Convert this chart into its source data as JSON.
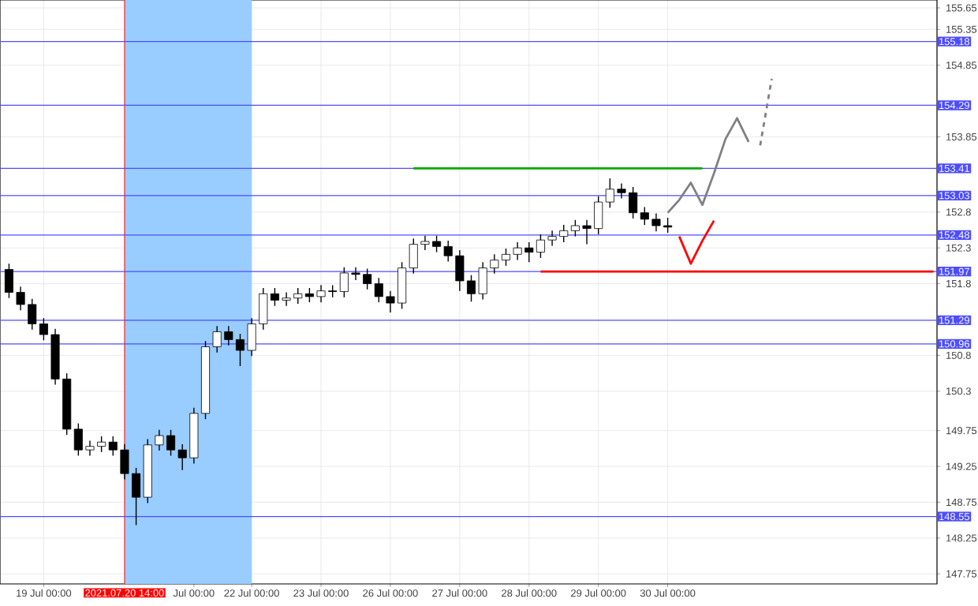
{
  "chart_data": {
    "type": "candlestick",
    "color": "#000000",
    "grid": true,
    "categories": [
      null,
      null,
      null,
      "19 Jul 00:00",
      null,
      null,
      null,
      null,
      null,
      null,
      "2021.07.20 14:00",
      null,
      null,
      null,
      null,
      null,
      "Jul 00:00",
      null,
      null,
      null,
      null,
      "22 Jul 00:00",
      null,
      null,
      null,
      null,
      null,
      "23 Jul 00:00",
      null,
      null,
      null,
      null,
      null,
      "26 Jul 00:00",
      null,
      null,
      null,
      null,
      null,
      "27 Jul 00:00",
      null,
      null,
      null,
      null,
      null,
      "28 Jul 00:00",
      null,
      null,
      null,
      null,
      null,
      "29 Jul 00:00",
      null,
      null,
      null,
      null,
      null,
      "30 Jul 00:00",
      null,
      null,
      null,
      null,
      null,
      null,
      null,
      null,
      null,
      null,
      null,
      null,
      null,
      null,
      null,
      null,
      null,
      null,
      null,
      null,
      null,
      null,
      null
    ],
    "ohlc": [
      [
        152.0,
        152.08,
        151.6,
        151.68
      ],
      [
        151.68,
        151.76,
        151.43,
        151.51
      ],
      [
        151.51,
        151.59,
        151.16,
        151.24
      ],
      [
        151.24,
        151.32,
        151.01,
        151.09
      ],
      [
        151.09,
        151.17,
        150.39,
        150.47
      ],
      [
        150.47,
        150.55,
        149.69,
        149.77
      ],
      [
        149.77,
        149.85,
        149.4,
        149.48
      ],
      [
        149.48,
        149.61,
        149.4,
        149.53
      ],
      [
        149.53,
        149.67,
        149.45,
        149.59
      ],
      [
        149.59,
        149.67,
        149.4,
        149.48
      ],
      [
        149.48,
        149.56,
        149.07,
        149.15
      ],
      [
        149.15,
        149.23,
        148.43,
        148.82
      ],
      [
        148.82,
        149.63,
        148.74,
        149.55
      ],
      [
        149.55,
        149.76,
        149.47,
        149.68
      ],
      [
        149.68,
        149.76,
        149.4,
        149.48
      ],
      [
        149.48,
        149.56,
        149.2,
        149.37
      ],
      [
        149.37,
        150.07,
        149.29,
        149.99
      ],
      [
        149.99,
        151.0,
        149.91,
        150.92
      ],
      [
        150.92,
        151.21,
        150.84,
        151.13
      ],
      [
        151.13,
        151.21,
        150.94,
        151.02
      ],
      [
        151.02,
        151.1,
        150.65,
        150.87
      ],
      [
        150.87,
        151.32,
        150.79,
        151.24
      ],
      [
        151.24,
        151.74,
        151.16,
        151.66
      ],
      [
        151.66,
        151.74,
        151.49,
        151.57
      ],
      [
        151.57,
        151.68,
        151.49,
        151.6
      ],
      [
        151.6,
        151.74,
        151.52,
        151.66
      ],
      [
        151.66,
        151.74,
        151.54,
        151.62
      ],
      [
        151.62,
        151.78,
        151.54,
        151.7
      ],
      [
        151.7,
        151.78,
        151.61,
        151.69
      ],
      [
        151.69,
        152.03,
        151.61,
        151.95
      ],
      [
        151.95,
        152.03,
        151.85,
        151.93
      ],
      [
        151.93,
        152.01,
        151.72,
        151.8
      ],
      [
        151.8,
        151.88,
        151.54,
        151.62
      ],
      [
        151.62,
        151.7,
        151.4,
        151.53
      ],
      [
        151.53,
        152.1,
        151.45,
        152.02
      ],
      [
        152.02,
        152.43,
        151.94,
        152.35
      ],
      [
        152.35,
        152.47,
        152.27,
        152.39
      ],
      [
        152.39,
        152.47,
        152.24,
        152.32
      ],
      [
        152.32,
        152.4,
        152.11,
        152.19
      ],
      [
        152.19,
        152.27,
        151.7,
        151.84
      ],
      [
        151.84,
        151.92,
        151.55,
        151.66
      ],
      [
        151.66,
        152.1,
        151.58,
        152.02
      ],
      [
        152.02,
        152.21,
        151.94,
        152.13
      ],
      [
        152.13,
        152.29,
        152.05,
        152.21
      ],
      [
        152.21,
        152.38,
        152.13,
        152.3
      ],
      [
        152.3,
        152.38,
        152.1,
        152.24
      ],
      [
        152.24,
        152.49,
        152.16,
        152.41
      ],
      [
        152.41,
        152.54,
        152.33,
        152.46
      ],
      [
        152.46,
        152.62,
        152.38,
        152.54
      ],
      [
        152.54,
        152.69,
        152.46,
        152.61
      ],
      [
        152.61,
        152.69,
        152.35,
        152.57
      ],
      [
        152.57,
        153.02,
        152.49,
        152.94
      ],
      [
        152.94,
        153.27,
        152.86,
        153.12
      ],
      [
        153.12,
        153.2,
        152.99,
        153.07
      ],
      [
        153.07,
        153.15,
        152.71,
        152.79
      ],
      [
        152.79,
        152.87,
        152.62,
        152.7
      ],
      [
        152.7,
        152.78,
        152.53,
        152.61
      ],
      [
        152.61,
        152.72,
        152.51,
        152.59
      ],
      null,
      null,
      null,
      null,
      null,
      null,
      null,
      null,
      null,
      null,
      null,
      null,
      null,
      null,
      null,
      null,
      null,
      null,
      null,
      null,
      null,
      null,
      null
    ],
    "series": [
      {
        "type": "line",
        "color": "#00aa00",
        "values": [
          null,
          null,
          null,
          null,
          null,
          null,
          null,
          null,
          null,
          null,
          null,
          null,
          null,
          null,
          null,
          null,
          null,
          null,
          null,
          null,
          null,
          null,
          null,
          null,
          null,
          null,
          null,
          null,
          null,
          null,
          null,
          null,
          null,
          null,
          null,
          153.41,
          153.41,
          153.41,
          153.41,
          153.41,
          153.41,
          153.41,
          153.41,
          153.41,
          153.41,
          153.41,
          153.41,
          153.41,
          153.41,
          153.41,
          153.41,
          153.41,
          153.41,
          153.41,
          153.41,
          153.41,
          153.41,
          153.41,
          153.41,
          153.41,
          153.41,
          null,
          null,
          null,
          null,
          null,
          null,
          null,
          null,
          null,
          null,
          null,
          null,
          null,
          null,
          null,
          null,
          null,
          null,
          null,
          null
        ]
      },
      {
        "type": "line",
        "color": "#ff0000",
        "values": [
          null,
          null,
          null,
          null,
          null,
          null,
          null,
          null,
          null,
          null,
          null,
          null,
          null,
          null,
          null,
          null,
          null,
          null,
          null,
          null,
          null,
          null,
          null,
          null,
          null,
          null,
          null,
          null,
          null,
          null,
          null,
          null,
          null,
          null,
          null,
          null,
          null,
          null,
          null,
          null,
          null,
          null,
          null,
          null,
          null,
          null,
          151.97,
          151.97,
          151.97,
          151.97,
          151.97,
          151.97,
          151.97,
          151.97,
          151.97,
          151.97,
          151.97,
          151.97,
          151.97,
          151.97,
          151.97,
          151.97,
          151.97,
          151.97,
          151.97,
          151.97,
          151.97,
          151.97,
          151.97,
          151.97,
          151.97,
          151.97,
          151.97,
          151.97,
          151.97,
          151.97,
          151.97,
          151.97,
          151.97,
          151.97,
          151.97
        ]
      },
      {
        "type": "line",
        "color": "#808080",
        "values": [
          null,
          null,
          null,
          null,
          null,
          null,
          null,
          null,
          null,
          null,
          null,
          null,
          null,
          null,
          null,
          null,
          null,
          null,
          null,
          null,
          null,
          null,
          null,
          null,
          null,
          null,
          null,
          null,
          null,
          null,
          null,
          null,
          null,
          null,
          null,
          null,
          null,
          null,
          null,
          null,
          null,
          null,
          null,
          null,
          null,
          null,
          null,
          null,
          null,
          null,
          null,
          null,
          null,
          null,
          null,
          null,
          null,
          152.79,
          152.97,
          153.21,
          152.9,
          153.34,
          153.82,
          154.11,
          153.78,
          null,
          null,
          null,
          null,
          null,
          null,
          null,
          null,
          null,
          null,
          null,
          null,
          null,
          null,
          null,
          null
        ]
      },
      {
        "type": "line",
        "color": "#808080",
        "line_style": "dashed",
        "values": [
          null,
          null,
          null,
          null,
          null,
          null,
          null,
          null,
          null,
          null,
          null,
          null,
          null,
          null,
          null,
          null,
          null,
          null,
          null,
          null,
          null,
          null,
          null,
          null,
          null,
          null,
          null,
          null,
          null,
          null,
          null,
          null,
          null,
          null,
          null,
          null,
          null,
          null,
          null,
          null,
          null,
          null,
          null,
          null,
          null,
          null,
          null,
          null,
          null,
          null,
          null,
          null,
          null,
          null,
          null,
          null,
          null,
          null,
          null,
          null,
          null,
          null,
          null,
          null,
          null,
          153.73,
          154.66,
          null,
          null,
          null,
          null,
          null,
          null,
          null,
          null,
          null,
          null,
          null,
          null,
          null,
          null
        ]
      },
      {
        "type": "line",
        "color": "#ff0000",
        "values": [
          null,
          null,
          null,
          null,
          null,
          null,
          null,
          null,
          null,
          null,
          null,
          null,
          null,
          null,
          null,
          null,
          null,
          null,
          null,
          null,
          null,
          null,
          null,
          null,
          null,
          null,
          null,
          null,
          null,
          null,
          null,
          null,
          null,
          null,
          null,
          null,
          null,
          null,
          null,
          null,
          null,
          null,
          null,
          null,
          null,
          null,
          null,
          null,
          null,
          null,
          null,
          null,
          null,
          null,
          null,
          null,
          null,
          null,
          152.46,
          152.08,
          152.4,
          152.68,
          null,
          null,
          null,
          null,
          null,
          null,
          null,
          null,
          null,
          null,
          null,
          null,
          null,
          null,
          null,
          null,
          null,
          null,
          null
        ]
      }
    ],
    "ylim": [
      147.61,
      155.76
    ],
    "yticks": [
      155.65,
      155.35,
      154.85,
      153.85,
      152.8,
      152.3,
      151.8,
      150.8,
      150.3,
      149.75,
      149.25,
      148.75,
      148.25,
      147.75
    ],
    "ref_lines": [
      {
        "axis": "x",
        "value": "2021.07.20 14:00",
        "color": "#ff0000"
      },
      {
        "axis": "y",
        "value": 155.18,
        "label": "155.18",
        "color": "#4d4dff"
      },
      {
        "axis": "y",
        "value": 154.29,
        "label": "154.29",
        "color": "#4d4dff"
      },
      {
        "axis": "y",
        "value": 153.41,
        "label": "153.41",
        "color": "#4d4dff"
      },
      {
        "axis": "y",
        "value": 153.03,
        "label": "153.03",
        "color": "#4d4dff"
      },
      {
        "axis": "y",
        "value": 152.48,
        "label": "152.48",
        "color": "#4d4dff"
      },
      {
        "axis": "y",
        "value": 151.97,
        "label": "151.97",
        "color": "#4d4dff"
      },
      {
        "axis": "y",
        "value": 151.29,
        "label": "151.29",
        "color": "#4d4dff"
      },
      {
        "axis": "y",
        "value": 150.96,
        "label": "150.96",
        "color": "#4d4dff"
      },
      {
        "axis": "y",
        "value": 148.55,
        "label": "148.55",
        "color": "#4d4dff"
      }
    ],
    "bands": [
      {
        "axis": "x",
        "from": "2021.07.20 14:00",
        "to": "22 Jul 00:00",
        "color": "#99ccff"
      }
    ]
  }
}
